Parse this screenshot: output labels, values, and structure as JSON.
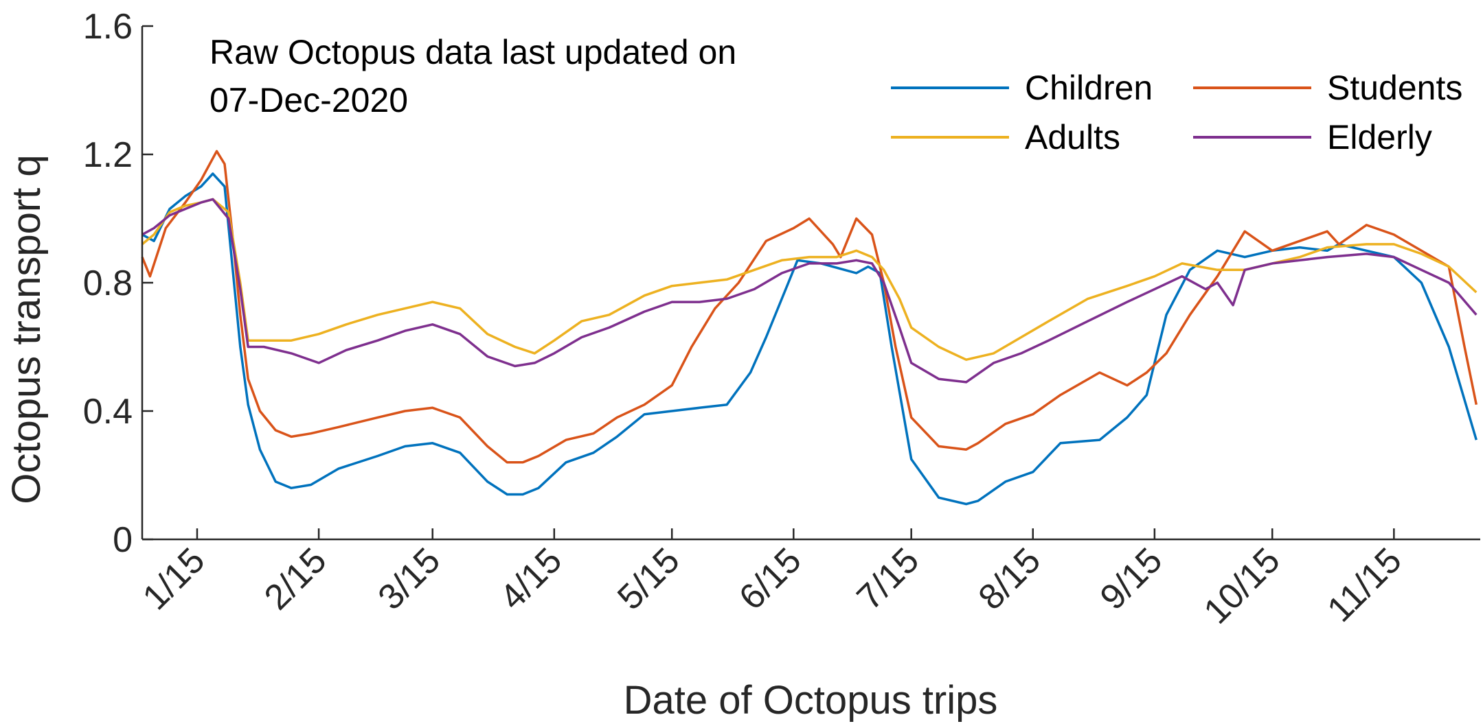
{
  "chart_data": {
    "type": "line",
    "xlabel": "Date of Octopus trips",
    "ylabel": "Octopus transport q",
    "annotation": [
      "Raw Octopus data last updated on",
      "07-Dec-2020"
    ],
    "ylim": [
      0,
      1.6
    ],
    "yticks": [
      0,
      0.4,
      0.8,
      1.2,
      1.6
    ],
    "ytick_labels": [
      "0",
      "0.4",
      "0.8",
      "1.2",
      "1.6"
    ],
    "xlim": [
      "2020-01-01",
      "2020-12-07"
    ],
    "xticks": [
      "2020-01-15",
      "2020-02-15",
      "2020-03-15",
      "2020-04-15",
      "2020-05-15",
      "2020-06-15",
      "2020-07-15",
      "2020-08-15",
      "2020-09-15",
      "2020-10-15",
      "2020-11-15"
    ],
    "xtick_labels": [
      "1/15",
      "2/15",
      "3/15",
      "4/15",
      "5/15",
      "6/15",
      "7/15",
      "8/15",
      "9/15",
      "10/15",
      "11/15"
    ],
    "grid": false,
    "legend_position": "top-right",
    "legend_columns": 2,
    "series": [
      {
        "name": "Children",
        "color": "#0072BD",
        "x": [
          "2020-01-01",
          "2020-01-04",
          "2020-01-08",
          "2020-01-12",
          "2020-01-16",
          "2020-01-19",
          "2020-01-22",
          "2020-01-24",
          "2020-01-26",
          "2020-01-28",
          "2020-01-31",
          "2020-02-04",
          "2020-02-08",
          "2020-02-13",
          "2020-02-20",
          "2020-03-01",
          "2020-03-08",
          "2020-03-15",
          "2020-03-22",
          "2020-03-29",
          "2020-04-03",
          "2020-04-07",
          "2020-04-11",
          "2020-04-18",
          "2020-04-25",
          "2020-05-01",
          "2020-05-08",
          "2020-05-15",
          "2020-05-22",
          "2020-05-29",
          "2020-06-04",
          "2020-06-08",
          "2020-06-12",
          "2020-06-16",
          "2020-06-22",
          "2020-06-28",
          "2020-07-01",
          "2020-07-04",
          "2020-07-07",
          "2020-07-10",
          "2020-07-15",
          "2020-07-22",
          "2020-07-29",
          "2020-08-01",
          "2020-08-08",
          "2020-08-15",
          "2020-08-22",
          "2020-09-01",
          "2020-09-08",
          "2020-09-13",
          "2020-09-18",
          "2020-09-24",
          "2020-10-01",
          "2020-10-08",
          "2020-10-15",
          "2020-10-22",
          "2020-10-29",
          "2020-11-01",
          "2020-11-08",
          "2020-11-15",
          "2020-11-22",
          "2020-11-29",
          "2020-12-06"
        ],
        "y": [
          0.95,
          0.93,
          1.03,
          1.07,
          1.1,
          1.14,
          1.1,
          0.85,
          0.6,
          0.42,
          0.28,
          0.18,
          0.16,
          0.17,
          0.22,
          0.26,
          0.29,
          0.3,
          0.27,
          0.18,
          0.14,
          0.14,
          0.16,
          0.24,
          0.27,
          0.32,
          0.39,
          0.4,
          0.41,
          0.42,
          0.52,
          0.63,
          0.75,
          0.87,
          0.86,
          0.84,
          0.83,
          0.85,
          0.83,
          0.6,
          0.25,
          0.13,
          0.11,
          0.12,
          0.18,
          0.21,
          0.3,
          0.31,
          0.38,
          0.45,
          0.7,
          0.84,
          0.9,
          0.88,
          0.9,
          0.91,
          0.9,
          0.92,
          0.9,
          0.88,
          0.8,
          0.6,
          0.31
        ]
      },
      {
        "name": "Students",
        "color": "#D95319",
        "x": [
          "2020-01-01",
          "2020-01-03",
          "2020-01-07",
          "2020-01-12",
          "2020-01-16",
          "2020-01-20",
          "2020-01-22",
          "2020-01-24",
          "2020-01-26",
          "2020-01-28",
          "2020-01-31",
          "2020-02-04",
          "2020-02-08",
          "2020-02-13",
          "2020-02-20",
          "2020-03-01",
          "2020-03-08",
          "2020-03-15",
          "2020-03-22",
          "2020-03-29",
          "2020-04-03",
          "2020-04-07",
          "2020-04-11",
          "2020-04-18",
          "2020-04-25",
          "2020-05-01",
          "2020-05-08",
          "2020-05-15",
          "2020-05-20",
          "2020-05-26",
          "2020-06-01",
          "2020-06-08",
          "2020-06-15",
          "2020-06-19",
          "2020-06-25",
          "2020-06-27",
          "2020-07-01",
          "2020-07-05",
          "2020-07-08",
          "2020-07-11",
          "2020-07-15",
          "2020-07-22",
          "2020-07-29",
          "2020-08-01",
          "2020-08-08",
          "2020-08-15",
          "2020-08-22",
          "2020-09-01",
          "2020-09-08",
          "2020-09-13",
          "2020-09-18",
          "2020-09-24",
          "2020-10-01",
          "2020-10-08",
          "2020-10-15",
          "2020-10-22",
          "2020-10-29",
          "2020-11-01",
          "2020-11-08",
          "2020-11-15",
          "2020-11-22",
          "2020-11-29",
          "2020-12-03",
          "2020-12-06"
        ],
        "y": [
          0.88,
          0.82,
          0.97,
          1.05,
          1.12,
          1.21,
          1.17,
          0.95,
          0.7,
          0.5,
          0.4,
          0.34,
          0.32,
          0.33,
          0.35,
          0.38,
          0.4,
          0.41,
          0.38,
          0.29,
          0.24,
          0.24,
          0.26,
          0.31,
          0.33,
          0.38,
          0.42,
          0.48,
          0.6,
          0.72,
          0.8,
          0.93,
          0.97,
          1.0,
          0.92,
          0.88,
          1.0,
          0.95,
          0.8,
          0.6,
          0.38,
          0.29,
          0.28,
          0.3,
          0.36,
          0.39,
          0.45,
          0.52,
          0.48,
          0.52,
          0.58,
          0.7,
          0.82,
          0.96,
          0.9,
          0.93,
          0.96,
          0.92,
          0.98,
          0.95,
          0.9,
          0.85,
          0.6,
          0.42
        ]
      },
      {
        "name": "Adults",
        "color": "#EDB120",
        "x": [
          "2020-01-01",
          "2020-01-04",
          "2020-01-08",
          "2020-01-12",
          "2020-01-16",
          "2020-01-19",
          "2020-01-23",
          "2020-01-26",
          "2020-01-28",
          "2020-02-01",
          "2020-02-08",
          "2020-02-15",
          "2020-02-22",
          "2020-03-01",
          "2020-03-08",
          "2020-03-15",
          "2020-03-22",
          "2020-03-29",
          "2020-04-05",
          "2020-04-10",
          "2020-04-15",
          "2020-04-22",
          "2020-04-29",
          "2020-05-08",
          "2020-05-15",
          "2020-05-22",
          "2020-05-29",
          "2020-06-05",
          "2020-06-12",
          "2020-06-19",
          "2020-06-26",
          "2020-07-01",
          "2020-07-05",
          "2020-07-08",
          "2020-07-12",
          "2020-07-15",
          "2020-07-22",
          "2020-07-29",
          "2020-08-05",
          "2020-08-12",
          "2020-08-19",
          "2020-08-29",
          "2020-09-08",
          "2020-09-15",
          "2020-09-22",
          "2020-10-01",
          "2020-10-08",
          "2020-10-15",
          "2020-10-22",
          "2020-10-29",
          "2020-11-08",
          "2020-11-15",
          "2020-11-22",
          "2020-11-29",
          "2020-12-06"
        ],
        "y": [
          0.92,
          0.95,
          1.02,
          1.04,
          1.05,
          1.06,
          1.02,
          0.8,
          0.62,
          0.62,
          0.62,
          0.64,
          0.67,
          0.7,
          0.72,
          0.74,
          0.72,
          0.64,
          0.6,
          0.58,
          0.62,
          0.68,
          0.7,
          0.76,
          0.79,
          0.8,
          0.81,
          0.84,
          0.87,
          0.88,
          0.88,
          0.9,
          0.88,
          0.84,
          0.75,
          0.66,
          0.6,
          0.56,
          0.58,
          0.63,
          0.68,
          0.75,
          0.79,
          0.82,
          0.86,
          0.84,
          0.84,
          0.86,
          0.88,
          0.91,
          0.92,
          0.92,
          0.89,
          0.85,
          0.77
        ]
      },
      {
        "name": "Elderly",
        "color": "#7E2F8E",
        "x": [
          "2020-01-01",
          "2020-01-04",
          "2020-01-08",
          "2020-01-12",
          "2020-01-16",
          "2020-01-19",
          "2020-01-23",
          "2020-01-26",
          "2020-01-28",
          "2020-02-01",
          "2020-02-08",
          "2020-02-15",
          "2020-02-22",
          "2020-03-01",
          "2020-03-08",
          "2020-03-15",
          "2020-03-22",
          "2020-03-29",
          "2020-04-05",
          "2020-04-10",
          "2020-04-15",
          "2020-04-22",
          "2020-04-29",
          "2020-05-08",
          "2020-05-15",
          "2020-05-22",
          "2020-05-29",
          "2020-06-05",
          "2020-06-12",
          "2020-06-19",
          "2020-06-26",
          "2020-07-01",
          "2020-07-05",
          "2020-07-08",
          "2020-07-12",
          "2020-07-15",
          "2020-07-22",
          "2020-07-29",
          "2020-08-05",
          "2020-08-12",
          "2020-08-19",
          "2020-08-29",
          "2020-09-08",
          "2020-09-15",
          "2020-09-22",
          "2020-09-28",
          "2020-10-01",
          "2020-10-05",
          "2020-10-08",
          "2020-10-15",
          "2020-10-22",
          "2020-10-29",
          "2020-11-08",
          "2020-11-15",
          "2020-11-22",
          "2020-11-29",
          "2020-12-06"
        ],
        "y": [
          0.95,
          0.97,
          1.01,
          1.03,
          1.05,
          1.06,
          1.0,
          0.78,
          0.6,
          0.6,
          0.58,
          0.55,
          0.59,
          0.62,
          0.65,
          0.67,
          0.64,
          0.57,
          0.54,
          0.55,
          0.58,
          0.63,
          0.66,
          0.71,
          0.74,
          0.74,
          0.75,
          0.78,
          0.83,
          0.86,
          0.86,
          0.87,
          0.86,
          0.8,
          0.66,
          0.55,
          0.5,
          0.49,
          0.55,
          0.58,
          0.62,
          0.68,
          0.74,
          0.78,
          0.82,
          0.78,
          0.8,
          0.73,
          0.84,
          0.86,
          0.87,
          0.88,
          0.89,
          0.88,
          0.84,
          0.8,
          0.7
        ]
      }
    ]
  }
}
